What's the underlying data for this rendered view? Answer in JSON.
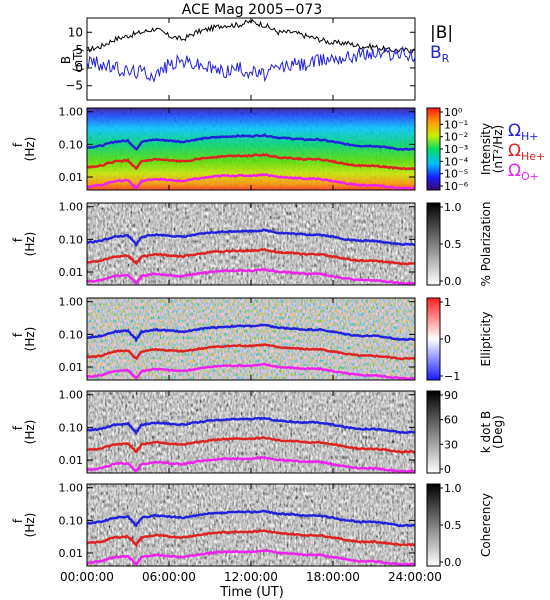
{
  "chart_data": {
    "type": "multi-panel",
    "title": "ACE Mag 2005−073",
    "xlabel": "Time (UT)",
    "x_ticks": [
      "00:00:00",
      "06:00:00",
      "12:00:00",
      "18:00:00",
      "24:00:00"
    ],
    "x_range_hours": [
      0,
      24
    ],
    "panels": [
      {
        "kind": "line",
        "ylabel": "B",
        "yunit": "(nT)",
        "ylim": [
          -9,
          14
        ],
        "y_ticks": [
          "10",
          "5",
          "0",
          "−5"
        ],
        "y_tick_values": [
          10,
          5,
          0,
          -5
        ],
        "legend": [
          {
            "label": "|B|",
            "color": "#000000"
          },
          {
            "label": "B",
            "sub": "R",
            "color": "#2222dd"
          }
        ],
        "series": [
          {
            "name": "|B|",
            "color": "#000000",
            "x": [
              0,
              1,
              2,
              3,
              4,
              5,
              6,
              7,
              8,
              9,
              10,
              11,
              12,
              13,
              14,
              15,
              16,
              17,
              18,
              19,
              20,
              21,
              22,
              23,
              24
            ],
            "y": [
              5,
              6,
              8,
              9,
              10,
              11,
              9,
              8,
              10,
              11,
              12,
              12,
              13,
              12,
              10,
              10,
              9,
              8,
              7,
              7,
              6,
              6,
              5,
              5,
              5
            ]
          },
          {
            "name": "B_R",
            "color": "#2222dd",
            "x": [
              0,
              1,
              2,
              3,
              4,
              5,
              6,
              7,
              8,
              9,
              10,
              11,
              12,
              13,
              14,
              15,
              16,
              17,
              18,
              19,
              20,
              21,
              22,
              23,
              24
            ],
            "y": [
              2,
              1,
              0,
              -1,
              -1,
              -2,
              1,
              2,
              1,
              0,
              -1,
              0,
              -1,
              -2,
              0,
              1,
              1,
              2,
              3,
              3,
              4,
              4,
              4,
              4,
              3
            ]
          }
        ]
      },
      {
        "kind": "spectrogram",
        "ylabel": "f",
        "yunit": "(Hz)",
        "y_ticks": [
          "1.00",
          "0.10",
          "0.01"
        ],
        "colorbar_label": "Intensity",
        "colorbar_unit": "(nT²/Hz)",
        "colorbar_ticks": [
          "10⁰",
          "10⁻¹",
          "10⁻²",
          "10⁻³",
          "10⁻⁴",
          "10⁻⁵",
          "10⁻⁶"
        ],
        "colormap": "rainbow",
        "legend": [
          {
            "label": "Ω",
            "sub": "H+",
            "color": "#2222dd"
          },
          {
            "label": "Ω",
            "sub": "He+",
            "color": "#dd2222"
          },
          {
            "label": "Ω",
            "sub": "O+",
            "color": "#ee22ee"
          }
        ]
      },
      {
        "kind": "spectrogram",
        "ylabel": "f",
        "yunit": "(Hz)",
        "y_ticks": [
          "1.00",
          "0.10",
          "0.01"
        ],
        "colorbar_label": "% Polarization",
        "colorbar_unit": "",
        "colorbar_ticks": [
          "1.0",
          "0.5",
          "0.0"
        ],
        "colormap": "gray"
      },
      {
        "kind": "spectrogram",
        "ylabel": "f",
        "yunit": "(Hz)",
        "y_ticks": [
          "1.00",
          "0.10",
          "0.01"
        ],
        "colorbar_label": "Ellipticity",
        "colorbar_unit": "",
        "colorbar_ticks": [
          "1",
          "0",
          "−1"
        ],
        "colormap": "bluewhitered"
      },
      {
        "kind": "spectrogram",
        "ylabel": "f",
        "yunit": "(Hz)",
        "y_ticks": [
          "1.00",
          "0.10",
          "0.01"
        ],
        "colorbar_label": "k dot B",
        "colorbar_unit": "(Deg)",
        "colorbar_ticks": [
          "90",
          "60",
          "30",
          "0"
        ],
        "colormap": "gray"
      },
      {
        "kind": "spectrogram",
        "ylabel": "f",
        "yunit": "(Hz)",
        "y_ticks": [
          "1.00",
          "0.10",
          "0.01"
        ],
        "colorbar_label": "Coherency",
        "colorbar_unit": "",
        "colorbar_ticks": [
          "1.0",
          "0.5",
          "0.0"
        ],
        "colormap": "gray"
      }
    ],
    "gyrofrequency_lines": [
      {
        "name": "ΩH+",
        "color": "#2222dd",
        "x": [
          0,
          1,
          2,
          3,
          3.6,
          4,
          5,
          6,
          7,
          8,
          9,
          10,
          11,
          12,
          13,
          14,
          15,
          16,
          17,
          18,
          19,
          20,
          21,
          22,
          23,
          24
        ],
        "y": [
          0.08,
          0.09,
          0.12,
          0.13,
          0.07,
          0.12,
          0.14,
          0.13,
          0.12,
          0.14,
          0.16,
          0.17,
          0.18,
          0.18,
          0.19,
          0.16,
          0.15,
          0.14,
          0.14,
          0.12,
          0.1,
          0.09,
          0.09,
          0.08,
          0.07,
          0.07
        ]
      },
      {
        "name": "ΩHe+",
        "color": "#dd2222",
        "x": [
          0,
          1,
          2,
          3,
          3.6,
          4,
          5,
          6,
          7,
          8,
          9,
          10,
          11,
          12,
          13,
          14,
          15,
          16,
          17,
          18,
          19,
          20,
          21,
          22,
          23,
          24
        ],
        "y": [
          0.02,
          0.022,
          0.03,
          0.032,
          0.018,
          0.03,
          0.035,
          0.032,
          0.03,
          0.035,
          0.04,
          0.043,
          0.045,
          0.045,
          0.048,
          0.04,
          0.038,
          0.035,
          0.035,
          0.03,
          0.025,
          0.022,
          0.022,
          0.02,
          0.018,
          0.018
        ]
      },
      {
        "name": "ΩO+",
        "color": "#ee22ee",
        "x": [
          0,
          1,
          2,
          3,
          3.6,
          4,
          5,
          6,
          7,
          8,
          9,
          10,
          11,
          12,
          13,
          14,
          15,
          16,
          17,
          18,
          19,
          20,
          21,
          22,
          23,
          24
        ],
        "y": [
          0.005,
          0.0056,
          0.0075,
          0.008,
          0.0045,
          0.0075,
          0.0088,
          0.008,
          0.0075,
          0.0088,
          0.01,
          0.011,
          0.011,
          0.011,
          0.012,
          0.01,
          0.0095,
          0.0088,
          0.0088,
          0.0075,
          0.0063,
          0.0056,
          0.0056,
          0.005,
          0.0045,
          0.0045
        ]
      }
    ],
    "f_range_hz": [
      0.004,
      1.3
    ]
  }
}
